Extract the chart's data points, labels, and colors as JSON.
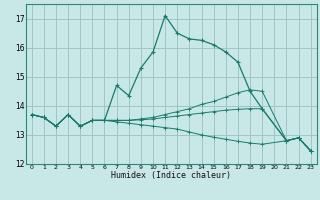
{
  "xlabel": "Humidex (Indice chaleur)",
  "bg_color": "#c8e8e8",
  "grid_color": "#a0c4c4",
  "line_color": "#1a7a6a",
  "spine_color": "#2a8a7a",
  "xlim": [
    -0.5,
    23.5
  ],
  "ylim": [
    12.0,
    17.5
  ],
  "xticks": [
    0,
    1,
    2,
    3,
    4,
    5,
    6,
    7,
    8,
    9,
    10,
    11,
    12,
    13,
    14,
    15,
    16,
    17,
    18,
    19,
    20,
    21,
    22,
    23
  ],
  "yticks": [
    12,
    13,
    14,
    15,
    16,
    17
  ],
  "main_x": [
    0,
    1,
    2,
    3,
    4,
    5,
    6,
    7,
    8,
    9,
    10,
    11,
    12,
    13,
    14,
    15,
    16,
    17,
    18,
    19,
    21,
    22,
    23
  ],
  "main_y": [
    13.7,
    13.6,
    13.3,
    13.7,
    13.3,
    13.5,
    13.5,
    14.7,
    14.35,
    15.3,
    15.85,
    17.1,
    16.5,
    16.3,
    16.25,
    16.1,
    15.85,
    15.5,
    14.5,
    13.9,
    12.8,
    12.9,
    12.45
  ],
  "fan_lines": [
    [
      13.7,
      13.6,
      13.3,
      13.7,
      13.3,
      13.5,
      13.5,
      13.5,
      13.5,
      13.55,
      13.6,
      13.7,
      13.8,
      13.9,
      14.05,
      14.15,
      14.3,
      14.45,
      14.55,
      14.5,
      12.8,
      12.9,
      12.45
    ],
    [
      13.7,
      13.6,
      13.3,
      13.7,
      13.3,
      13.5,
      13.5,
      13.5,
      13.5,
      13.52,
      13.55,
      13.6,
      13.65,
      13.7,
      13.75,
      13.8,
      13.85,
      13.88,
      13.9,
      13.9,
      12.8,
      12.9,
      12.45
    ],
    [
      13.7,
      13.6,
      13.3,
      13.7,
      13.3,
      13.5,
      13.5,
      13.45,
      13.4,
      13.35,
      13.3,
      13.25,
      13.2,
      13.1,
      13.0,
      12.92,
      12.85,
      12.78,
      12.72,
      12.68,
      12.8,
      12.9,
      12.45
    ]
  ]
}
